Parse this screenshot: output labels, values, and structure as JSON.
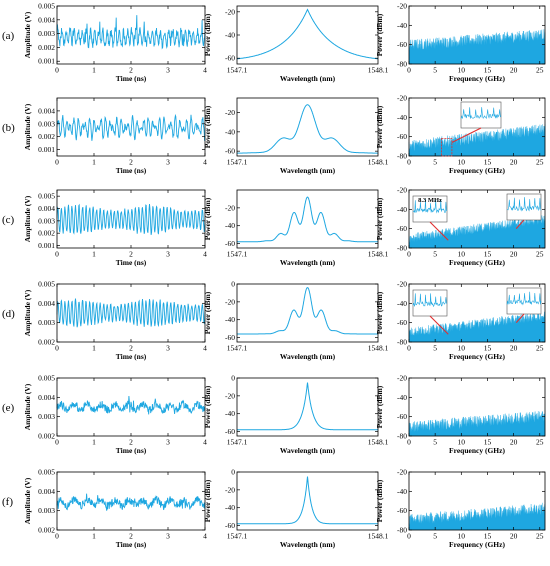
{
  "chart_data": {
    "type": "line",
    "row_labels": [
      "(a)",
      "(b)",
      "(c)",
      "(d)",
      "(e)",
      "(f)"
    ],
    "columns": [
      {
        "xlabel": "Time (ns)",
        "ylabel": "Amplitude (V)",
        "xlim": [
          0,
          4
        ],
        "xticks": [
          "0",
          "1",
          "2",
          "3",
          "4"
        ]
      },
      {
        "xlabel": "Wavelength (nm)",
        "ylabel": "Power (dBm)",
        "xlim": [
          1547.1,
          1548.1
        ],
        "xticks": [
          "1547.1",
          "1548.1"
        ]
      },
      {
        "xlabel": "Frequency (GHz)",
        "ylabel": "Power (dBm)",
        "xlim": [
          0,
          26
        ],
        "xticks": [
          "0",
          "5",
          "10",
          "15",
          "20",
          "25"
        ]
      }
    ],
    "rows": [
      {
        "label": "(a)",
        "time_series": {
          "ylim": [
            0.0008,
            0.005
          ],
          "yticks": [
            "0.005",
            "0.004",
            "0.003",
            "0.002",
            "0.001"
          ],
          "mean": 0.0027,
          "amplitude": 0.0011,
          "style": "chaotic"
        },
        "optical_spectrum": {
          "ylim": [
            -65,
            -15
          ],
          "yticks": [
            "-20",
            "-40",
            "-60"
          ],
          "peak_dBm": -18,
          "base_dBm": -62,
          "peaks": 0,
          "width": 0.55
        },
        "rf_spectrum": {
          "ylim": [
            -80,
            -20
          ],
          "yticks": [
            "-20",
            "-40",
            "-60",
            "-80"
          ],
          "start_dBm": -63,
          "end_dBm": -52,
          "spread": 12,
          "inset_left": false,
          "inset_right": false
        }
      },
      {
        "label": "(b)",
        "time_series": {
          "ylim": [
            0.0005,
            0.005
          ],
          "yticks": [
            "0.004",
            "0.003",
            "0.002",
            "0.001"
          ],
          "mean": 0.0027,
          "amplitude": 0.0012,
          "style": "beating"
        },
        "optical_spectrum": {
          "ylim": [
            -65,
            -5
          ],
          "yticks": [
            "-20",
            "-40",
            "-60"
          ],
          "peak_dBm": -12,
          "base_dBm": -62,
          "peaks": 5,
          "width": 0.42
        },
        "rf_spectrum": {
          "ylim": [
            -80,
            -20
          ],
          "yticks": [
            "-20",
            "-40",
            "-60",
            "-80"
          ],
          "start_dBm": -72,
          "end_dBm": -55,
          "spread": 12,
          "inset_left": false,
          "inset_right": false,
          "inset_top": true
        }
      },
      {
        "label": "(c)",
        "time_series": {
          "ylim": [
            0.0008,
            0.0055
          ],
          "yticks": [
            "0.005",
            "0.004",
            "0.003",
            "0.002",
            "0.001"
          ],
          "mean": 0.0031,
          "amplitude": 0.0015,
          "style": "periodic"
        },
        "optical_spectrum": {
          "ylim": [
            -65,
            0
          ],
          "yticks": [
            "-20",
            "-40",
            "-60"
          ],
          "peak_dBm": -8,
          "base_dBm": -58,
          "peaks": 9,
          "width": 0.36
        },
        "rf_spectrum": {
          "ylim": [
            -80,
            -20
          ],
          "yticks": [
            "-20",
            "-40",
            "-60",
            "-80"
          ],
          "start_dBm": -72,
          "end_dBm": -52,
          "spread": 10,
          "inset_left": true,
          "inset_right": true,
          "annotation": "8.3 MHz"
        }
      },
      {
        "label": "(d)",
        "time_series": {
          "ylim": [
            0.002,
            0.005
          ],
          "yticks": [
            "0.005",
            "0.004",
            "0.003",
            "0.002"
          ],
          "mean": 0.0035,
          "amplitude": 0.0009,
          "style": "periodic"
        },
        "optical_spectrum": {
          "ylim": [
            -65,
            0
          ],
          "yticks": [
            "0",
            "-20",
            "-40",
            "-60"
          ],
          "peak_dBm": -4,
          "base_dBm": -56,
          "peaks": 7,
          "width": 0.3
        },
        "rf_spectrum": {
          "ylim": [
            -80,
            -20
          ],
          "yticks": [
            "-20",
            "-40",
            "-60",
            "-80"
          ],
          "start_dBm": -72,
          "end_dBm": -55,
          "spread": 10,
          "inset_left": true,
          "inset_right": true
        }
      },
      {
        "label": "(e)",
        "time_series": {
          "ylim": [
            0.002,
            0.005
          ],
          "yticks": [
            "0.005",
            "0.004",
            "0.003",
            "0.002"
          ],
          "mean": 0.0035,
          "amplitude": 0.0005,
          "style": "noise"
        },
        "optical_spectrum": {
          "ylim": [
            -65,
            0
          ],
          "yticks": [
            "0",
            "-20",
            "-40",
            "-60"
          ],
          "peak_dBm": -5,
          "base_dBm": -58,
          "peaks": 1,
          "width": 0.12
        },
        "rf_spectrum": {
          "ylim": [
            -80,
            -20
          ],
          "yticks": [
            "-20",
            "-40",
            "-60",
            "-80"
          ],
          "start_dBm": -73,
          "end_dBm": -62,
          "spread": 12,
          "inset_left": false,
          "inset_right": false
        }
      },
      {
        "label": "(f)",
        "time_series": {
          "ylim": [
            0.002,
            0.005
          ],
          "yticks": [
            "0.005",
            "0.004",
            "0.003",
            "0.002"
          ],
          "mean": 0.0034,
          "amplitude": 0.0005,
          "style": "noise"
        },
        "optical_spectrum": {
          "ylim": [
            -65,
            0
          ],
          "yticks": [
            "0",
            "-20",
            "-40",
            "-60"
          ],
          "peak_dBm": -5,
          "base_dBm": -58,
          "peaks": 1,
          "width": 0.1
        },
        "rf_spectrum": {
          "ylim": [
            -80,
            -20
          ],
          "yticks": [
            "-20",
            "-40",
            "-60",
            "-80"
          ],
          "start_dBm": -72,
          "end_dBm": -60,
          "spread": 12,
          "inset_left": false,
          "inset_right": false
        }
      }
    ]
  },
  "colors": {
    "trace": "#1ea7e1",
    "axes": "#000000",
    "highlight": "#e03030"
  }
}
